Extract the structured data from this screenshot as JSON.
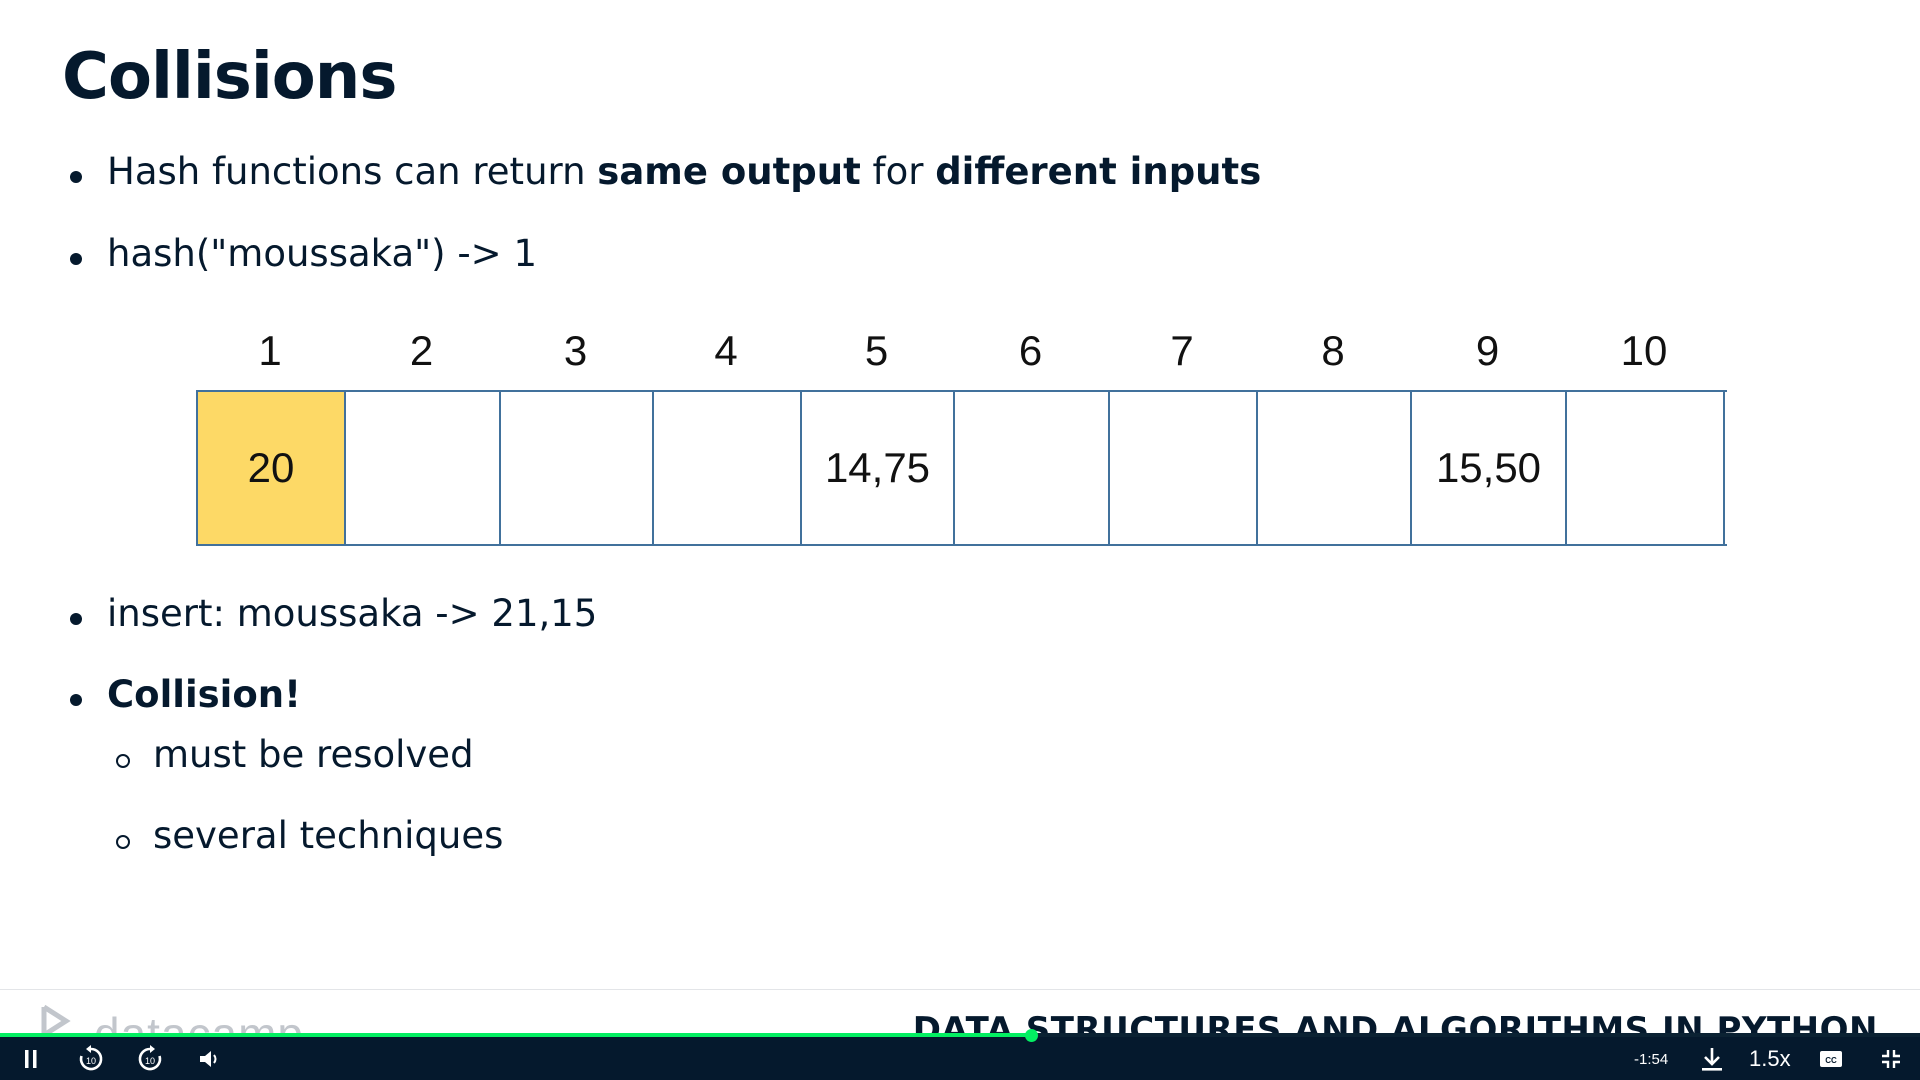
{
  "slide": {
    "title": "Collisions",
    "bullets": {
      "b1": {
        "pre": "Hash functions can return ",
        "bold1": "same output",
        "mid": " for ",
        "bold2": "different inputs"
      },
      "b2": "hash(\"moussaka\") -> 1",
      "b3": "insert: moussaka -> 21,15",
      "b4": "Collision!",
      "sub1": "must be resolved",
      "sub2": "several techniques"
    },
    "table": {
      "indices": [
        "1",
        "2",
        "3",
        "4",
        "5",
        "6",
        "7",
        "8",
        "9",
        "10"
      ],
      "cells": [
        "20",
        "",
        "",
        "",
        "14,75",
        "",
        "",
        "",
        "15,50",
        ""
      ],
      "highlight_color": "#fdd966",
      "border_color": "#41719c"
    }
  },
  "footer": {
    "logo_text": "datacamp",
    "course_title": "DATA STRUCTURES AND ALGORITHMS IN PYTHON"
  },
  "player": {
    "progress_fraction": 0.537,
    "time_remaining": "-1:54",
    "speed": "1.5x",
    "accent_color": "#03ef62"
  }
}
